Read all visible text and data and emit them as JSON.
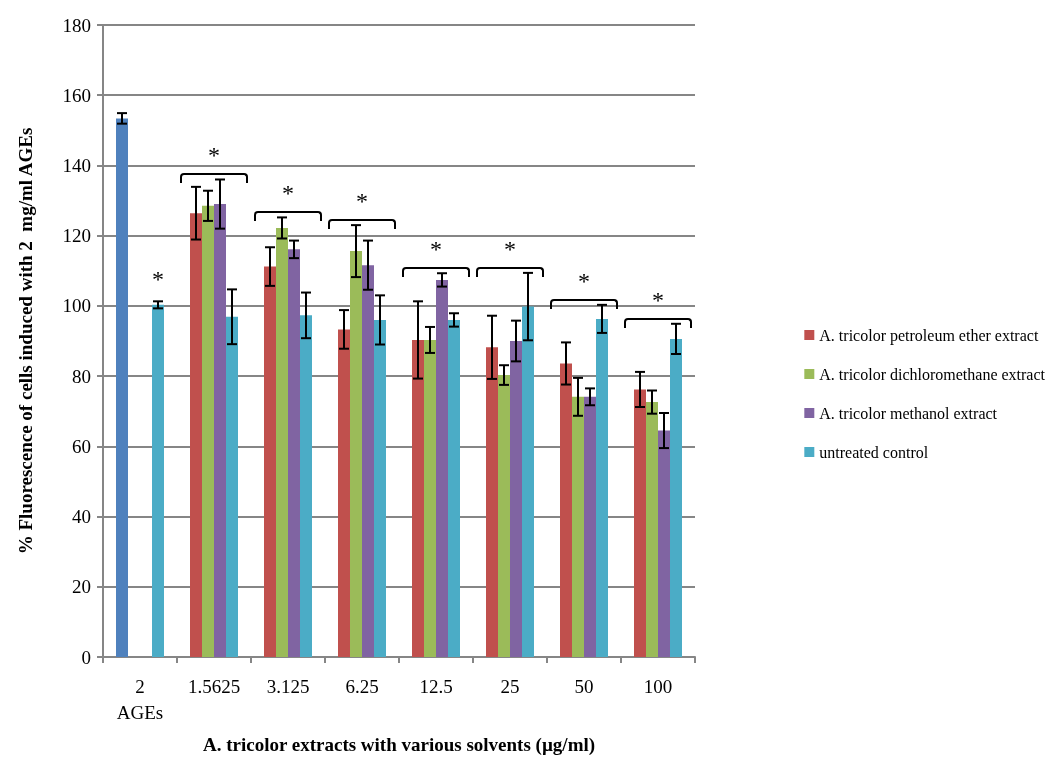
{
  "chart_data": {
    "type": "bar",
    "xlabel": "A. tricolor extracts with various solvents (µg/ml)",
    "ylabel": "% Fluorescence of cells induced with 2  mg/ml AGEs",
    "categories": [
      "2\nAGEs",
      "1.5625",
      "3.125",
      "6.25",
      "12.5",
      "25",
      "50",
      "100"
    ],
    "series": [
      {
        "name": "A. tricolor petroleum ether extract",
        "color": "#c0504d",
        "colors": [
          "#4f81bd",
          "#c0504d",
          "#c0504d",
          "#c0504d",
          "#c0504d",
          "#c0504d",
          "#c0504d",
          "#c0504d"
        ],
        "values": [
          153.4,
          126.4,
          111.2,
          93.3,
          90.3,
          88.2,
          83.6,
          76.2
        ],
        "errors": [
          1.5,
          7.5,
          5.5,
          5.5,
          11,
          9,
          6,
          5
        ]
      },
      {
        "name": "A. tricolor dichloromethane extract",
        "color": "#9bbb59",
        "values": [
          null,
          128.5,
          122.2,
          115.6,
          90.3,
          80.3,
          74.1,
          72.6
        ],
        "errors": [
          null,
          4.3,
          3,
          7.4,
          3.7,
          2.8,
          5.4,
          3.3
        ]
      },
      {
        "name": "A. tricolor methanol extract",
        "color": "#8064a2",
        "values": [
          null,
          129,
          116.1,
          111.6,
          107.4,
          90,
          74.1,
          64.5
        ],
        "errors": [
          null,
          7,
          2.5,
          7,
          1.9,
          5.8,
          2.4,
          5
        ]
      },
      {
        "name": "untreated control",
        "color": "#4bacc6",
        "values": [
          100.3,
          96.9,
          97.3,
          96,
          96,
          99.8,
          96.3,
          90.6
        ],
        "errors": [
          1,
          7.8,
          6.5,
          7,
          1.9,
          9.6,
          4,
          4.3
        ]
      }
    ],
    "ylim": [
      0,
      180
    ],
    "yticks": [
      0,
      20,
      40,
      60,
      80,
      100,
      120,
      140,
      160,
      180
    ],
    "grid": "y",
    "legend": "right",
    "annotations": [
      "*",
      "*",
      "*",
      "*",
      "*",
      "*",
      "*",
      "*"
    ]
  }
}
